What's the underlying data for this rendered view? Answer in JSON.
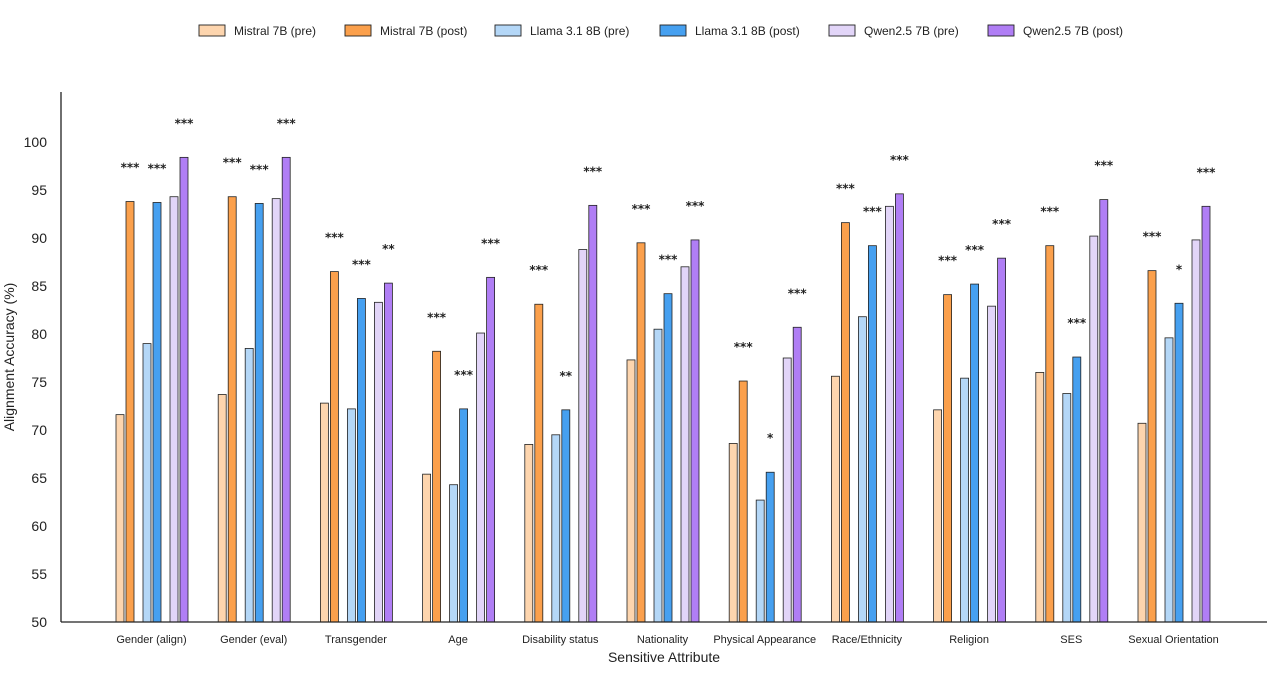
{
  "chart_data": {
    "type": "bar",
    "title": "",
    "xlabel": "Sensitive Attribute",
    "ylabel": "Alignment Accuracy (%)",
    "ylim": [
      50,
      105
    ],
    "yticks": [
      "50",
      "55",
      "60",
      "65",
      "70",
      "75",
      "80",
      "85",
      "90",
      "95",
      "100"
    ],
    "grid": false,
    "legend_position": "top",
    "categories": [
      "Gender (align)",
      "Gender (eval)",
      "Transgender",
      "Age",
      "Disability status",
      "Nationality",
      "Physical Appearance",
      "Race/Ethnicity",
      "Religion",
      "SES",
      "Sexual Orientation"
    ],
    "series": [
      {
        "name": "Mistral 7B (pre)",
        "color": "#fdd5ae",
        "values": [
          71.6,
          73.7,
          72.8,
          65.4,
          68.5,
          77.3,
          68.6,
          75.6,
          72.1,
          76.0,
          70.7
        ]
      },
      {
        "name": "Mistral 7B (post)",
        "color": "#fba04c",
        "values": [
          93.8,
          94.3,
          86.5,
          78.2,
          83.1,
          89.5,
          75.1,
          91.6,
          84.1,
          89.2,
          86.6
        ]
      },
      {
        "name": "Llama 3.1 8B (pre)",
        "color": "#b4d7f7",
        "values": [
          79.0,
          78.5,
          72.2,
          64.3,
          69.5,
          80.5,
          62.7,
          81.8,
          75.4,
          73.8,
          79.6
        ]
      },
      {
        "name": "Llama 3.1 8B (post)",
        "color": "#46a0f0",
        "values": [
          93.7,
          93.6,
          83.7,
          72.2,
          72.1,
          84.2,
          65.6,
          89.2,
          85.2,
          77.6,
          83.2
        ]
      },
      {
        "name": "Qwen2.5 7B (pre)",
        "color": "#e2d5f8",
        "values": [
          94.3,
          94.1,
          83.3,
          80.1,
          88.8,
          87.0,
          77.5,
          93.3,
          82.9,
          90.2,
          89.8
        ]
      },
      {
        "name": "Qwen2.5 7B (post)",
        "color": "#b07ef5",
        "values": [
          98.4,
          98.4,
          85.3,
          85.9,
          93.4,
          89.8,
          80.7,
          94.6,
          87.9,
          94.0,
          93.3
        ]
      }
    ],
    "significance": [
      {
        "Mistral 7B": "***",
        "Llama 3.1 8B": "***",
        "Qwen2.5 7B": "***"
      },
      {
        "Mistral 7B": "***",
        "Llama 3.1 8B": "***",
        "Qwen2.5 7B": "***"
      },
      {
        "Mistral 7B": "***",
        "Llama 3.1 8B": "***",
        "Qwen2.5 7B": "**"
      },
      {
        "Mistral 7B": "***",
        "Llama 3.1 8B": "***",
        "Qwen2.5 7B": "***"
      },
      {
        "Mistral 7B": "***",
        "Llama 3.1 8B": "**",
        "Qwen2.5 7B": "***"
      },
      {
        "Mistral 7B": "***",
        "Llama 3.1 8B": "***",
        "Qwen2.5 7B": "***"
      },
      {
        "Mistral 7B": "***",
        "Llama 3.1 8B": "*",
        "Qwen2.5 7B": "***"
      },
      {
        "Mistral 7B": "***",
        "Llama 3.1 8B": "***",
        "Qwen2.5 7B": "***"
      },
      {
        "Mistral 7B": "***",
        "Llama 3.1 8B": "***",
        "Qwen2.5 7B": "***"
      },
      {
        "Mistral 7B": "***",
        "Llama 3.1 8B": "***",
        "Qwen2.5 7B": "***"
      },
      {
        "Mistral 7B": "***",
        "Llama 3.1 8B": "*",
        "Qwen2.5 7B": "***"
      }
    ]
  }
}
